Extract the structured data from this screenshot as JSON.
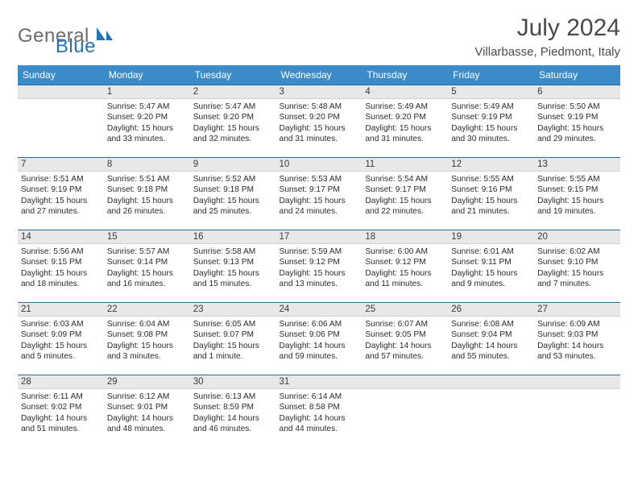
{
  "logo": {
    "text1": "General",
    "text2": "Blue"
  },
  "title": "July 2024",
  "location": "Villarbasse, Piedmont, Italy",
  "colors": {
    "header_bg": "#3b8bc9",
    "header_text": "#ffffff",
    "daybar_bg": "#e8e8e8",
    "daybar_border_top": "#2b6aa0",
    "body_text": "#2b2b2b",
    "title_text": "#4a4a4a",
    "logo_gray": "#6b6b6b",
    "logo_blue": "#2173b8",
    "page_bg": "#ffffff"
  },
  "fonts": {
    "title_size": 30,
    "location_size": 15,
    "dayheader_size": 12,
    "daynum_size": 11.5,
    "cell_size": 10.2
  },
  "day_headers": [
    "Sunday",
    "Monday",
    "Tuesday",
    "Wednesday",
    "Thursday",
    "Friday",
    "Saturday"
  ],
  "weeks": [
    [
      {
        "empty": true
      },
      {
        "n": "1",
        "sr": "Sunrise: 5:47 AM",
        "ss": "Sunset: 9:20 PM",
        "dl": "Daylight: 15 hours and 33 minutes."
      },
      {
        "n": "2",
        "sr": "Sunrise: 5:47 AM",
        "ss": "Sunset: 9:20 PM",
        "dl": "Daylight: 15 hours and 32 minutes."
      },
      {
        "n": "3",
        "sr": "Sunrise: 5:48 AM",
        "ss": "Sunset: 9:20 PM",
        "dl": "Daylight: 15 hours and 31 minutes."
      },
      {
        "n": "4",
        "sr": "Sunrise: 5:49 AM",
        "ss": "Sunset: 9:20 PM",
        "dl": "Daylight: 15 hours and 31 minutes."
      },
      {
        "n": "5",
        "sr": "Sunrise: 5:49 AM",
        "ss": "Sunset: 9:19 PM",
        "dl": "Daylight: 15 hours and 30 minutes."
      },
      {
        "n": "6",
        "sr": "Sunrise: 5:50 AM",
        "ss": "Sunset: 9:19 PM",
        "dl": "Daylight: 15 hours and 29 minutes."
      }
    ],
    [
      {
        "n": "7",
        "sr": "Sunrise: 5:51 AM",
        "ss": "Sunset: 9:19 PM",
        "dl": "Daylight: 15 hours and 27 minutes."
      },
      {
        "n": "8",
        "sr": "Sunrise: 5:51 AM",
        "ss": "Sunset: 9:18 PM",
        "dl": "Daylight: 15 hours and 26 minutes."
      },
      {
        "n": "9",
        "sr": "Sunrise: 5:52 AM",
        "ss": "Sunset: 9:18 PM",
        "dl": "Daylight: 15 hours and 25 minutes."
      },
      {
        "n": "10",
        "sr": "Sunrise: 5:53 AM",
        "ss": "Sunset: 9:17 PM",
        "dl": "Daylight: 15 hours and 24 minutes."
      },
      {
        "n": "11",
        "sr": "Sunrise: 5:54 AM",
        "ss": "Sunset: 9:17 PM",
        "dl": "Daylight: 15 hours and 22 minutes."
      },
      {
        "n": "12",
        "sr": "Sunrise: 5:55 AM",
        "ss": "Sunset: 9:16 PM",
        "dl": "Daylight: 15 hours and 21 minutes."
      },
      {
        "n": "13",
        "sr": "Sunrise: 5:55 AM",
        "ss": "Sunset: 9:15 PM",
        "dl": "Daylight: 15 hours and 19 minutes."
      }
    ],
    [
      {
        "n": "14",
        "sr": "Sunrise: 5:56 AM",
        "ss": "Sunset: 9:15 PM",
        "dl": "Daylight: 15 hours and 18 minutes."
      },
      {
        "n": "15",
        "sr": "Sunrise: 5:57 AM",
        "ss": "Sunset: 9:14 PM",
        "dl": "Daylight: 15 hours and 16 minutes."
      },
      {
        "n": "16",
        "sr": "Sunrise: 5:58 AM",
        "ss": "Sunset: 9:13 PM",
        "dl": "Daylight: 15 hours and 15 minutes."
      },
      {
        "n": "17",
        "sr": "Sunrise: 5:59 AM",
        "ss": "Sunset: 9:12 PM",
        "dl": "Daylight: 15 hours and 13 minutes."
      },
      {
        "n": "18",
        "sr": "Sunrise: 6:00 AM",
        "ss": "Sunset: 9:12 PM",
        "dl": "Daylight: 15 hours and 11 minutes."
      },
      {
        "n": "19",
        "sr": "Sunrise: 6:01 AM",
        "ss": "Sunset: 9:11 PM",
        "dl": "Daylight: 15 hours and 9 minutes."
      },
      {
        "n": "20",
        "sr": "Sunrise: 6:02 AM",
        "ss": "Sunset: 9:10 PM",
        "dl": "Daylight: 15 hours and 7 minutes."
      }
    ],
    [
      {
        "n": "21",
        "sr": "Sunrise: 6:03 AM",
        "ss": "Sunset: 9:09 PM",
        "dl": "Daylight: 15 hours and 5 minutes."
      },
      {
        "n": "22",
        "sr": "Sunrise: 6:04 AM",
        "ss": "Sunset: 9:08 PM",
        "dl": "Daylight: 15 hours and 3 minutes."
      },
      {
        "n": "23",
        "sr": "Sunrise: 6:05 AM",
        "ss": "Sunset: 9:07 PM",
        "dl": "Daylight: 15 hours and 1 minute."
      },
      {
        "n": "24",
        "sr": "Sunrise: 6:06 AM",
        "ss": "Sunset: 9:06 PM",
        "dl": "Daylight: 14 hours and 59 minutes."
      },
      {
        "n": "25",
        "sr": "Sunrise: 6:07 AM",
        "ss": "Sunset: 9:05 PM",
        "dl": "Daylight: 14 hours and 57 minutes."
      },
      {
        "n": "26",
        "sr": "Sunrise: 6:08 AM",
        "ss": "Sunset: 9:04 PM",
        "dl": "Daylight: 14 hours and 55 minutes."
      },
      {
        "n": "27",
        "sr": "Sunrise: 6:09 AM",
        "ss": "Sunset: 9:03 PM",
        "dl": "Daylight: 14 hours and 53 minutes."
      }
    ],
    [
      {
        "n": "28",
        "sr": "Sunrise: 6:11 AM",
        "ss": "Sunset: 9:02 PM",
        "dl": "Daylight: 14 hours and 51 minutes."
      },
      {
        "n": "29",
        "sr": "Sunrise: 6:12 AM",
        "ss": "Sunset: 9:01 PM",
        "dl": "Daylight: 14 hours and 48 minutes."
      },
      {
        "n": "30",
        "sr": "Sunrise: 6:13 AM",
        "ss": "Sunset: 8:59 PM",
        "dl": "Daylight: 14 hours and 46 minutes."
      },
      {
        "n": "31",
        "sr": "Sunrise: 6:14 AM",
        "ss": "Sunset: 8:58 PM",
        "dl": "Daylight: 14 hours and 44 minutes."
      },
      {
        "empty": true
      },
      {
        "empty": true
      },
      {
        "empty": true
      }
    ]
  ]
}
